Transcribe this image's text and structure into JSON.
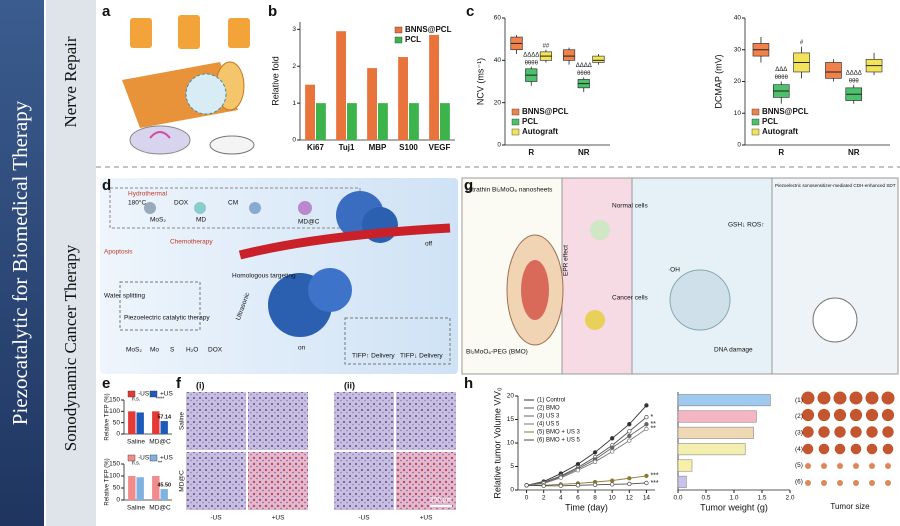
{
  "sidebar": {
    "title": "Piezocatalytic for  Biomedical Therapy"
  },
  "sections": [
    "Nerve Repair",
    "Sonodynamic Cancer Therapy"
  ],
  "panel_labels": [
    "a",
    "b",
    "c",
    "d",
    "g",
    "e",
    "f",
    "h"
  ],
  "panel_d": {
    "hydrothermal": "Hydrothermal",
    "temp": "180°C",
    "mos2": "MoS₂",
    "dox": "DOX",
    "md": "MD",
    "cm": "CM",
    "mdc": "MD@C",
    "chemo": "Chemotherapy",
    "apoptosis": "Apoptosis",
    "targeting": "Homologous targeting",
    "piezo": "Piezoelectric catalytic therapy",
    "water": "Water splitting",
    "ultrasonic": "Ultrasonic",
    "off": "off",
    "on": "on",
    "delivery_up": "TIFP↑ Delivery",
    "delivery_down": "TIFP↓ Delivery",
    "legend": [
      "MoS₂",
      "Mo",
      "S",
      "H₂O",
      "DOX"
    ]
  },
  "panel_g": {
    "nanosheets": "Ultrathin Bi₂MoO₆ nanosheets",
    "bmo": "Bi₂MoO₆-PEG (BMO)",
    "epr": "EPR effect",
    "normal": "Normal cells",
    "cancer": "Cancer cells",
    "dna": "DNA damage",
    "gsh": "GSH↓ ROS↑",
    "oh": "·OH",
    "sdt": "Piezoelectric sonosensitizer-mediated CDH-enhanced SDT"
  },
  "panel_f": {
    "i": "(i)",
    "ii": "(ii)",
    "saline": "Saline",
    "mdc": "MD@C",
    "cols": [
      "-US",
      "+US",
      "-US",
      "+US"
    ],
    "scale": "200 μm"
  },
  "panel_h": {
    "tumor_size": "Tumor size"
  },
  "chart_data": [
    {
      "type": "bar",
      "ylabel": "Relative fold",
      "categories": [
        "Ki67",
        "Tuj1",
        "MBP",
        "S100",
        "VEGF"
      ],
      "series": [
        {
          "name": "BNNS@PCL",
          "color": "#e8743b",
          "values": [
            1.5,
            2.95,
            1.95,
            2.25,
            2.85
          ]
        },
        {
          "name": "PCL",
          "color": "#3cb44b",
          "values": [
            1,
            1,
            1,
            1,
            1
          ]
        }
      ],
      "ylim": [
        0,
        3.2
      ],
      "yticks": [
        0,
        1,
        2,
        3
      ]
    },
    {
      "type": "box",
      "ylabel": "NCV (ms⁻¹)",
      "categories": [
        "R",
        "NR"
      ],
      "series": [
        {
          "name": "BNNS@PCL",
          "color": "#f0814a",
          "min": [
            43,
            38
          ],
          "q1": [
            45,
            40
          ],
          "median": [
            48,
            42
          ],
          "q3": [
            51,
            45
          ],
          "max": [
            52,
            46
          ]
        },
        {
          "name": "PCL",
          "color": "#4cc06a",
          "min": [
            28,
            25
          ],
          "q1": [
            30,
            27
          ],
          "median": [
            33,
            29
          ],
          "q3": [
            36,
            31
          ],
          "max": [
            37,
            32
          ]
        },
        {
          "name": "Autograft",
          "color": "#f2e35a",
          "min": [
            39,
            38
          ],
          "q1": [
            40,
            39
          ],
          "median": [
            42,
            40
          ],
          "q3": [
            44,
            42
          ],
          "max": [
            45,
            43
          ]
        }
      ],
      "ylim": [
        0,
        60
      ],
      "yticks": [
        0,
        20,
        40,
        60
      ],
      "annotations": [
        "ΔΔΔΔ",
        "θθθθ",
        "##",
        "ΔΔΔΔ",
        "θθθθ"
      ]
    },
    {
      "type": "box",
      "ylabel": "DCMAP (mV)",
      "categories": [
        "R",
        "NR"
      ],
      "series": [
        {
          "name": "BNNS@PCL",
          "color": "#f0814a",
          "min": [
            26,
            20
          ],
          "q1": [
            28,
            21
          ],
          "median": [
            30,
            23
          ],
          "q3": [
            32,
            26
          ],
          "max": [
            34,
            27
          ]
        },
        {
          "name": "PCL",
          "color": "#4cc06a",
          "min": [
            13,
            13
          ],
          "q1": [
            15,
            14
          ],
          "median": [
            17,
            16
          ],
          "q3": [
            19,
            18
          ],
          "max": [
            20,
            19
          ]
        },
        {
          "name": "Autograft",
          "color": "#f2e35a",
          "min": [
            21,
            22
          ],
          "q1": [
            23,
            23
          ],
          "median": [
            26,
            25
          ],
          "q3": [
            29,
            27
          ],
          "max": [
            31,
            29
          ]
        }
      ],
      "ylim": [
        0,
        40
      ],
      "yticks": [
        0,
        10,
        20,
        30,
        40
      ],
      "annotations": [
        "ΔΔΔ",
        "θθθθ",
        "#",
        "ΔΔΔΔ",
        "θθθ"
      ]
    },
    {
      "type": "bar",
      "ylabel": "Relative TIFP (%)",
      "categories": [
        "Saline",
        "MD@C"
      ],
      "series": [
        {
          "name": "-US",
          "color": "#e53935",
          "values": [
            100,
            100
          ]
        },
        {
          "name": "+US",
          "color": "#1e5bb8",
          "values": [
            95,
            57.14
          ],
          "value_labels": [
            null,
            "57.14"
          ]
        }
      ],
      "ylim": [
        0,
        150
      ],
      "yticks": [
        0,
        50,
        100,
        150
      ],
      "annotations": [
        "n.s.",
        "****"
      ]
    },
    {
      "type": "bar",
      "ylabel": "Relative TIFP (%)",
      "categories": [
        "Saline",
        "MD@C"
      ],
      "series": [
        {
          "name": "-US",
          "color": "#f28b8b",
          "values": [
            100,
            100
          ]
        },
        {
          "name": "+US",
          "color": "#7fb2e0",
          "values": [
            95,
            45.5
          ],
          "value_labels": [
            null,
            "45.50"
          ]
        }
      ],
      "ylim": [
        0,
        150
      ],
      "yticks": [
        0,
        50,
        100,
        150
      ],
      "annotations": [
        "n.s.",
        "**"
      ]
    },
    {
      "type": "line",
      "xlabel": "Time (day)",
      "ylabel": "Relative tumor Volume V/V₀",
      "x": [
        0,
        2,
        4,
        6,
        8,
        10,
        12,
        14
      ],
      "series": [
        {
          "name": "(1) Control",
          "color": "#333333",
          "values": [
            1,
            1.8,
            3.5,
            5.5,
            8,
            11,
            14,
            18
          ]
        },
        {
          "name": "(2) BMO",
          "color": "#555555",
          "values": [
            1,
            1.6,
            3,
            4.8,
            7,
            9.5,
            12.5,
            15.5
          ]
        },
        {
          "name": "(3) US 3",
          "color": "#666666",
          "values": [
            1,
            1.5,
            2.8,
            4.5,
            6.5,
            9,
            11.5,
            14
          ]
        },
        {
          "name": "(4) US 5",
          "color": "#777777",
          "values": [
            1,
            1.4,
            2.6,
            4.2,
            6,
            8.2,
            10.5,
            13
          ]
        },
        {
          "name": "(5) BMO + US 3",
          "color": "#8a7a30",
          "values": [
            1,
            1,
            1.2,
            1.4,
            1.7,
            2,
            2.5,
            3
          ]
        },
        {
          "name": "(6) BMO + US 5",
          "color": "#4a4a4a",
          "values": [
            1,
            0.9,
            0.9,
            1,
            1.1,
            1.2,
            1.3,
            1.5
          ]
        }
      ],
      "xlim": [
        -1,
        15
      ],
      "xticks": [
        0,
        2,
        4,
        6,
        8,
        10,
        12,
        14
      ],
      "ylim": [
        0,
        20
      ],
      "yticks": [
        0,
        5,
        10,
        15,
        20
      ],
      "annotations": [
        "*",
        "**",
        "**",
        "***",
        "***"
      ]
    },
    {
      "type": "hbar",
      "xlabel": "Tumor weight (g)",
      "categories": [
        "(1)",
        "(2)",
        "(3)",
        "(4)",
        "(5)",
        "(6)"
      ],
      "values": [
        1.65,
        1.4,
        1.35,
        1.2,
        0.25,
        0.15
      ],
      "colors": [
        "#9fc9ef",
        "#f4b6c2",
        "#efd9b4",
        "#f3efb0",
        "#f6f0a8",
        "#c9c2ea"
      ],
      "xlim": [
        0,
        2
      ],
      "xticks": [
        {
          "value": 0,
          "label": "0.0"
        },
        0.5,
        {
          "value": 1,
          "label": "1.0"
        },
        1.5,
        {
          "value": 2,
          "label": "2.0"
        }
      ]
    }
  ]
}
